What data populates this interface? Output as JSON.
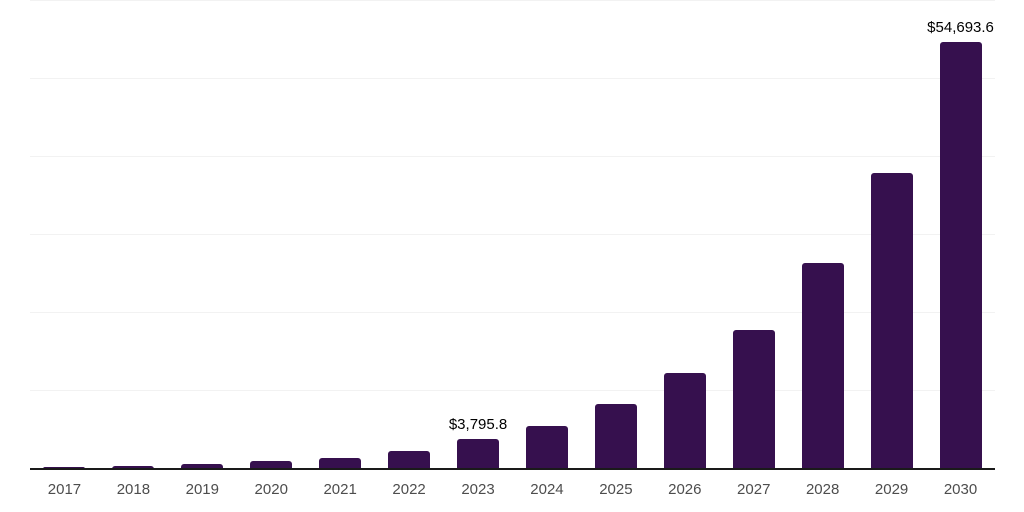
{
  "chart": {
    "background_color": "#ffffff",
    "bar_color": "#36104E",
    "axis_line_color": "#1a1a1a",
    "gridline_color": "#f2f2f2",
    "tick_label_color": "#4d4d4d",
    "data_label_color": "#000000"
  },
  "chart_data": {
    "type": "bar",
    "title": "",
    "xlabel": "",
    "ylabel": "",
    "categories": [
      "2017",
      "2018",
      "2019",
      "2020",
      "2021",
      "2022",
      "2023",
      "2024",
      "2025",
      "2026",
      "2027",
      "2028",
      "2029",
      "2030"
    ],
    "values": [
      200,
      350,
      650,
      975,
      1400,
      2300,
      3795.8,
      5550,
      8300,
      12300,
      17800,
      26400,
      38000,
      54693.6
    ],
    "data_labels": [
      "",
      "",
      "",
      "",
      "",
      "",
      "$3,795.8",
      "",
      "",
      "",
      "",
      "",
      "",
      "$54,693.6"
    ],
    "ylim": [
      0,
      60000
    ],
    "gridline_step": 10000,
    "grid": "horizontal",
    "legend_position": "none"
  }
}
